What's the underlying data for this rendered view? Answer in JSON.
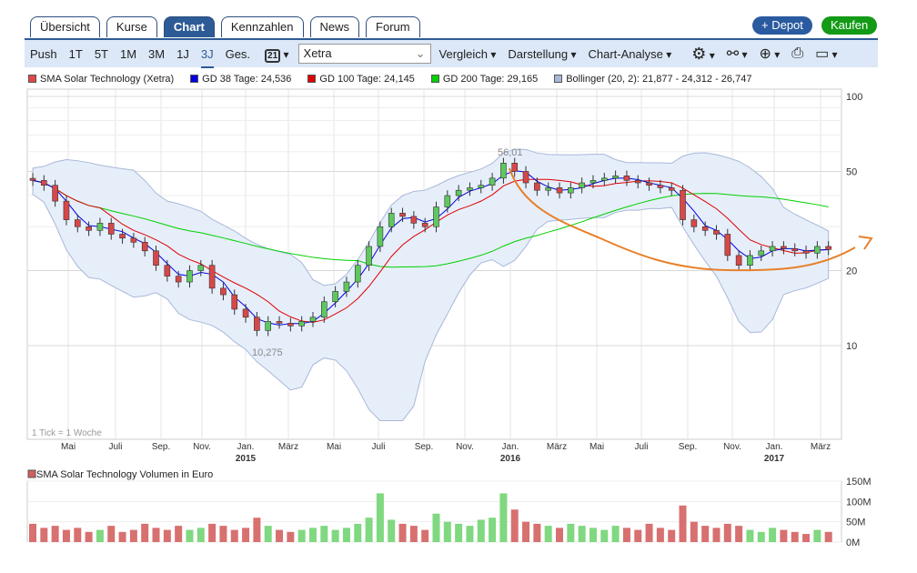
{
  "tabs": [
    "Übersicht",
    "Kurse",
    "Chart",
    "Kennzahlen",
    "News",
    "Forum"
  ],
  "active_tab": "Chart",
  "buttons": {
    "depot": "+ Depot",
    "kaufen": "Kaufen"
  },
  "toolbar": {
    "ranges": [
      "Push",
      "1T",
      "5T",
      "1M",
      "3M",
      "1J",
      "3J",
      "Ges."
    ],
    "active_range": "3J",
    "calendar": "21",
    "exchange": "Xetra",
    "menus": [
      "Vergleich",
      "Darstellung",
      "Chart-Analyse"
    ]
  },
  "legend": [
    {
      "label": "SMA Solar Technology (Xetra)",
      "color": "#e04848"
    },
    {
      "label": "GD 38 Tage: 24,536",
      "color": "#0000e0"
    },
    {
      "label": "GD 100 Tage: 24,145",
      "color": "#e00000"
    },
    {
      "label": "GD 200 Tage: 29,165",
      "color": "#00d000"
    },
    {
      "label": "Bollinger (20, 2): 21,877 - 24,312 - 26,747",
      "color": "#a8b8d8"
    }
  ],
  "chart_data": {
    "type": "candlestick",
    "yscale": "log",
    "ylim": [
      7,
      110
    ],
    "yticks": [
      10,
      20,
      50,
      100
    ],
    "xticks": [
      {
        "label": "Mai"
      },
      {
        "label": "Juli"
      },
      {
        "label": "Sep."
      },
      {
        "label": "Nov."
      },
      {
        "label": "Jan.",
        "year": "2015"
      },
      {
        "label": "März"
      },
      {
        "label": "Mai"
      },
      {
        "label": "Juli"
      },
      {
        "label": "Sep."
      },
      {
        "label": "Nov."
      },
      {
        "label": "Jan.",
        "year": "2016"
      },
      {
        "label": "März"
      },
      {
        "label": "Mai"
      },
      {
        "label": "Juli"
      },
      {
        "label": "Sep."
      },
      {
        "label": "Nov."
      },
      {
        "label": "Jan.",
        "year": "2017"
      },
      {
        "label": "März"
      }
    ],
    "annotations": {
      "high": "56,01",
      "low": "10,275",
      "tick_note": "1 Tick = 1 Woche"
    },
    "closes": [
      46,
      44,
      38,
      32,
      30,
      29,
      31,
      28,
      27,
      26,
      24,
      21,
      19,
      18,
      20,
      21,
      17,
      16,
      14,
      13,
      11.5,
      12.5,
      12.3,
      12,
      12.5,
      13,
      15,
      16.5,
      18,
      21,
      25,
      30,
      34,
      33,
      31,
      30,
      36,
      40,
      42,
      43,
      44,
      47,
      54,
      50,
      45,
      42,
      43,
      41,
      43,
      45,
      46,
      47,
      48,
      46,
      45,
      44,
      43,
      42,
      32,
      30,
      29,
      28,
      23,
      21,
      23,
      24,
      25,
      24.5,
      24,
      23.5,
      25,
      24.3
    ],
    "volume": {
      "title": "SMA Solar Technology Volumen in Euro",
      "yticks": [
        "150M",
        "100M",
        "50M",
        "0M"
      ],
      "ylim": [
        0,
        150
      ],
      "values": [
        45,
        35,
        40,
        30,
        35,
        25,
        30,
        40,
        25,
        30,
        45,
        35,
        30,
        40,
        30,
        35,
        45,
        40,
        30,
        35,
        60,
        40,
        30,
        25,
        30,
        35,
        40,
        30,
        35,
        45,
        60,
        120,
        55,
        45,
        40,
        30,
        70,
        50,
        45,
        40,
        55,
        60,
        120,
        80,
        50,
        45,
        40,
        35,
        45,
        40,
        35,
        30,
        40,
        35,
        30,
        45,
        35,
        30,
        90,
        50,
        40,
        35,
        45,
        40,
        30,
        25,
        35,
        30,
        25,
        20,
        30,
        25
      ]
    }
  }
}
